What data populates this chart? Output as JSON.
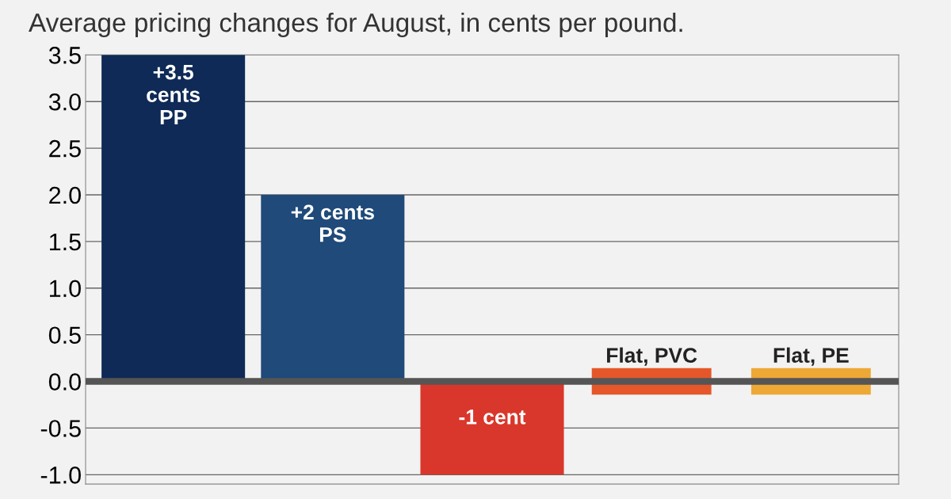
{
  "chart_data": {
    "type": "bar",
    "title": "Average pricing changes for August, in cents per pound.",
    "categories": [
      null,
      null,
      null,
      null,
      null
    ],
    "values": [
      3.5,
      2,
      -1,
      0,
      0
    ],
    "colors": [
      "#0f2a56",
      "#1f4a7a",
      "#d9372b",
      "#e5572a",
      "#eea835"
    ],
    "value_labels": [
      "+3.5\ncents\nPP",
      "+2 cents\nPS",
      "-1 cent",
      "Flat, PVC",
      "Flat, PE"
    ],
    "ylim": [
      -1.1,
      3.5
    ],
    "yticks": [
      {
        "value": -1.0,
        "label": "-1.0"
      },
      {
        "value": -0.5,
        "label": "-0.5"
      },
      {
        "value": 0,
        "label": "0.0"
      },
      0.5,
      {
        "value": 1,
        "label": "1.0"
      },
      1.5,
      {
        "value": 2,
        "label": "2.0"
      },
      2.5,
      {
        "value": 3,
        "label": "3.0"
      },
      3.5
    ],
    "ref_lines": [
      {
        "axis": "y",
        "value": 0,
        "color": "#555555"
      }
    ],
    "grid": "y"
  }
}
